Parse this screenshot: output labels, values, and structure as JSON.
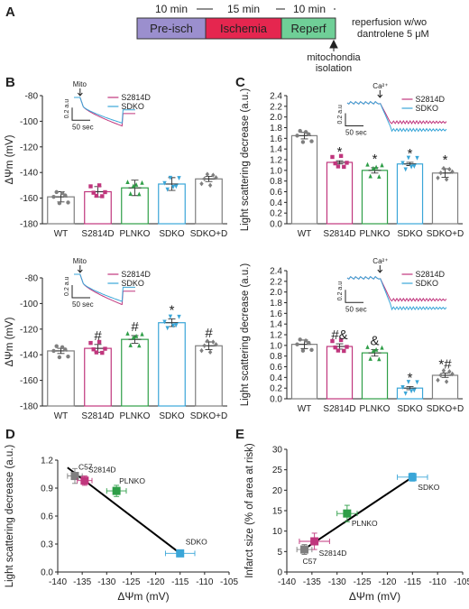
{
  "panel_letters": {
    "a": "A",
    "b": "B",
    "c": "C",
    "d": "D",
    "e": "E"
  },
  "colors": {
    "preisch": "#9b8fce",
    "ischemia": "#e5264f",
    "reperf": "#6fcf97",
    "wt": "#7f7f7f",
    "s2814d": "#c0367d",
    "plnko": "#2e9e47",
    "sdko": "#3aa6d8",
    "sdkod": "#7f7f7f"
  },
  "protocol": {
    "durations": [
      "10 min",
      "15 min",
      "10 min"
    ],
    "segments": [
      "Pre-isch",
      "Ischemia",
      "Reperf"
    ],
    "right_note": [
      "reperfusion w/wo",
      "dantrolene 5 μM"
    ],
    "arrow_label": [
      "mitochondia",
      "isolation"
    ]
  },
  "chart_data": [
    {
      "id": "B_top",
      "type": "bar",
      "ylabel": "ΔΨm (mV)",
      "ylim": [
        -180,
        -80
      ],
      "yticks": [
        -80,
        -100,
        -120,
        -140,
        -160,
        -180
      ],
      "categories": [
        "WT",
        "S2814D",
        "PLNKO",
        "SDKO",
        "SDKO+D"
      ],
      "values": [
        -159,
        -155,
        -152,
        -149,
        -145
      ],
      "errors": [
        4,
        4,
        6,
        5,
        2
      ],
      "annotations": [
        "",
        "",
        "",
        "",
        ""
      ],
      "inset": {
        "arrow_label": "Mito",
        "scale_y": "0.2 a.u",
        "scale_x": "50 sec",
        "legend": [
          "S2814D",
          "SDKO"
        ]
      }
    },
    {
      "id": "B_bottom",
      "type": "bar",
      "ylabel": "ΔΨm (mV)",
      "ylim": [
        -180,
        -80
      ],
      "yticks": [
        -80,
        -100,
        -120,
        -140,
        -160,
        -180
      ],
      "categories": [
        "WT",
        "S2814D",
        "PLNKO",
        "SDKO",
        "SDKO+D"
      ],
      "values": [
        -137,
        -135,
        -128,
        -115,
        -133
      ],
      "errors": [
        2,
        3,
        3,
        3,
        3
      ],
      "annotations": [
        "",
        "#",
        "#",
        "*",
        "#"
      ],
      "inset": {
        "arrow_label": "Mito",
        "scale_y": "0.2 a.u",
        "scale_x": "50 sec",
        "legend": [
          "S2814D",
          "SDKO"
        ]
      }
    },
    {
      "id": "C_top",
      "type": "bar",
      "ylabel": "Light scattering decrease (a.u.)",
      "ylim": [
        0,
        2.4
      ],
      "yticks": [
        "0.0",
        "0.2",
        "0.4",
        "0.6",
        "0.8",
        "1.0",
        "1.2",
        "1.4",
        "1.6",
        "1.8",
        "2.0",
        "2.2",
        "2.4"
      ],
      "categories": [
        "WT",
        "S2814D",
        "PLNKO",
        "SDKO",
        "SDKO+D"
      ],
      "values": [
        1.65,
        1.15,
        1.0,
        1.12,
        0.95
      ],
      "errors": [
        0.06,
        0.03,
        0.05,
        0.03,
        0.08
      ],
      "annotations": [
        "",
        "*",
        "*",
        "*",
        "*"
      ],
      "inset": {
        "arrow_label": "Ca²⁺",
        "scale_y": "0.2 a.u",
        "scale_x": "50 sec",
        "legend": [
          "S2814D",
          "SDKO"
        ]
      }
    },
    {
      "id": "C_bottom",
      "type": "bar",
      "ylabel": "Light scattering decrease (a.u.)",
      "ylim": [
        0,
        2.4
      ],
      "yticks": [
        "0.0",
        "0.2",
        "0.4",
        "0.6",
        "0.8",
        "1.0",
        "1.2",
        "1.4",
        "1.6",
        "1.8",
        "2.0",
        "2.2",
        "2.4"
      ],
      "categories": [
        "WT",
        "S2814D",
        "PLNKO",
        "SDKO",
        "SDKO+D"
      ],
      "values": [
        1.02,
        0.98,
        0.86,
        0.2,
        0.44
      ],
      "errors": [
        0.08,
        0.05,
        0.06,
        0.03,
        0.04
      ],
      "annotations": [
        "",
        "#&",
        "&",
        "*",
        "*#"
      ],
      "inset": {
        "arrow_label": "Ca²⁺",
        "scale_y": "0.2 a.u",
        "scale_x": "50 sec",
        "legend": [
          "S2814D",
          "SDKO"
        ]
      }
    },
    {
      "id": "D",
      "type": "scatter",
      "xlabel": "ΔΨm (mV)",
      "ylabel": "Light scattering decrease (a.u.)",
      "xlim": [
        -140,
        -105
      ],
      "ylim": [
        0,
        1.2
      ],
      "xticks": [
        -140,
        -135,
        -130,
        -125,
        -120,
        -115,
        -110,
        -105
      ],
      "yticks": [
        "0.0",
        "0.3",
        "0.6",
        "0.9",
        "1.2"
      ],
      "points": [
        {
          "name": "C57",
          "x": -136.5,
          "y": 1.03,
          "xerr": 1.5,
          "yerr": 0.08,
          "color": "#7f7f7f"
        },
        {
          "name": "S2814D",
          "x": -134.5,
          "y": 0.98,
          "xerr": 1.5,
          "yerr": 0.05,
          "color": "#c0367d"
        },
        {
          "name": "PLNKO",
          "x": -128,
          "y": 0.87,
          "xerr": 2,
          "yerr": 0.06,
          "color": "#2e9e47"
        },
        {
          "name": "SDKO",
          "x": -115,
          "y": 0.2,
          "xerr": 3,
          "yerr": 0.03,
          "color": "#3aa6d8"
        }
      ],
      "fit": [
        [
          -138,
          1.12
        ],
        [
          -115,
          0.2
        ]
      ]
    },
    {
      "id": "E",
      "type": "scatter",
      "xlabel": "ΔΨm (mV)",
      "ylabel": "Infarct size (% of area at risk)",
      "xlim": [
        -140,
        -105
      ],
      "ylim": [
        0,
        30
      ],
      "xticks": [
        -140,
        -135,
        -130,
        -125,
        -120,
        -115,
        -110,
        -105
      ],
      "yticks": [
        0,
        5,
        10,
        15,
        20,
        25,
        30
      ],
      "points": [
        {
          "name": "C57",
          "x": -136.5,
          "y": 5.5,
          "xerr": 1.5,
          "yerr": 1.2,
          "color": "#7f7f7f"
        },
        {
          "name": "S2814D",
          "x": -134.5,
          "y": 7.5,
          "xerr": 3,
          "yerr": 2,
          "color": "#c0367d"
        },
        {
          "name": "PLNKO",
          "x": -128,
          "y": 14.3,
          "xerr": 2,
          "yerr": 2,
          "color": "#2e9e47"
        },
        {
          "name": "SDKO",
          "x": -115,
          "y": 23.2,
          "xerr": 3,
          "yerr": 1
        },
        {
          "_": ""
        }
      ],
      "fit": [
        [
          -137,
          5.2
        ],
        [
          -115,
          23.2
        ]
      ]
    }
  ]
}
